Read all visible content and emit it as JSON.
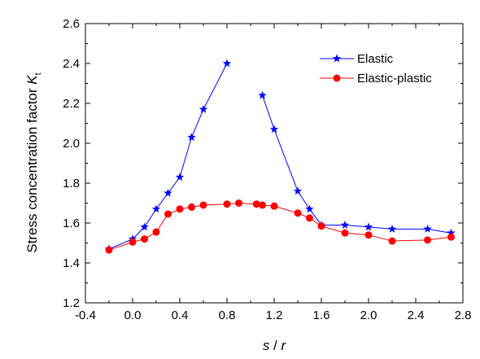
{
  "chart_data": {
    "type": "line",
    "xlabel_parts": [
      "s",
      " / ",
      "r"
    ],
    "ylabel_parts": [
      "Stress concentration factor ",
      "K",
      "t"
    ],
    "xlim": [
      -0.4,
      2.8
    ],
    "ylim": [
      1.2,
      2.6
    ],
    "xticks": [
      "-0.4",
      "0.0",
      "0.4",
      "0.8",
      "1.2",
      "1.6",
      "2.0",
      "2.4",
      "2.8"
    ],
    "yticks": [
      "1.2",
      "1.4",
      "1.6",
      "1.8",
      "2.0",
      "2.2",
      "2.4",
      "2.6"
    ],
    "legend_position": "top-right",
    "grid": false,
    "series": [
      {
        "name": "Elastic",
        "color": "#0000ff",
        "marker": "star",
        "segments": [
          [
            [
              -0.2,
              1.47
            ],
            [
              0.0,
              1.52
            ],
            [
              0.1,
              1.58
            ],
            [
              0.2,
              1.67
            ],
            [
              0.3,
              1.75
            ],
            [
              0.4,
              1.83
            ],
            [
              0.5,
              2.03
            ],
            [
              0.6,
              2.17
            ],
            [
              0.8,
              2.4
            ]
          ],
          [
            [
              1.1,
              2.24
            ],
            [
              1.2,
              2.07
            ],
            [
              1.4,
              1.76
            ],
            [
              1.5,
              1.67
            ],
            [
              1.6,
              1.59
            ],
            [
              1.8,
              1.59
            ],
            [
              2.0,
              1.58
            ],
            [
              2.2,
              1.57
            ],
            [
              2.5,
              1.57
            ],
            [
              2.7,
              1.55
            ]
          ]
        ]
      },
      {
        "name": "Elastic-plastic",
        "color": "#ff0000",
        "marker": "circle",
        "segments": [
          [
            [
              -0.2,
              1.465
            ],
            [
              0.0,
              1.505
            ],
            [
              0.1,
              1.52
            ],
            [
              0.2,
              1.555
            ],
            [
              0.3,
              1.645
            ],
            [
              0.4,
              1.67
            ],
            [
              0.5,
              1.68
            ],
            [
              0.6,
              1.69
            ],
            [
              0.8,
              1.695
            ],
            [
              0.9,
              1.7
            ],
            [
              1.05,
              1.695
            ],
            [
              1.1,
              1.69
            ],
            [
              1.2,
              1.685
            ],
            [
              1.4,
              1.65
            ],
            [
              1.5,
              1.625
            ],
            [
              1.6,
              1.585
            ],
            [
              1.8,
              1.55
            ],
            [
              2.0,
              1.54
            ],
            [
              2.2,
              1.51
            ],
            [
              2.5,
              1.515
            ],
            [
              2.7,
              1.53
            ]
          ]
        ]
      }
    ]
  }
}
